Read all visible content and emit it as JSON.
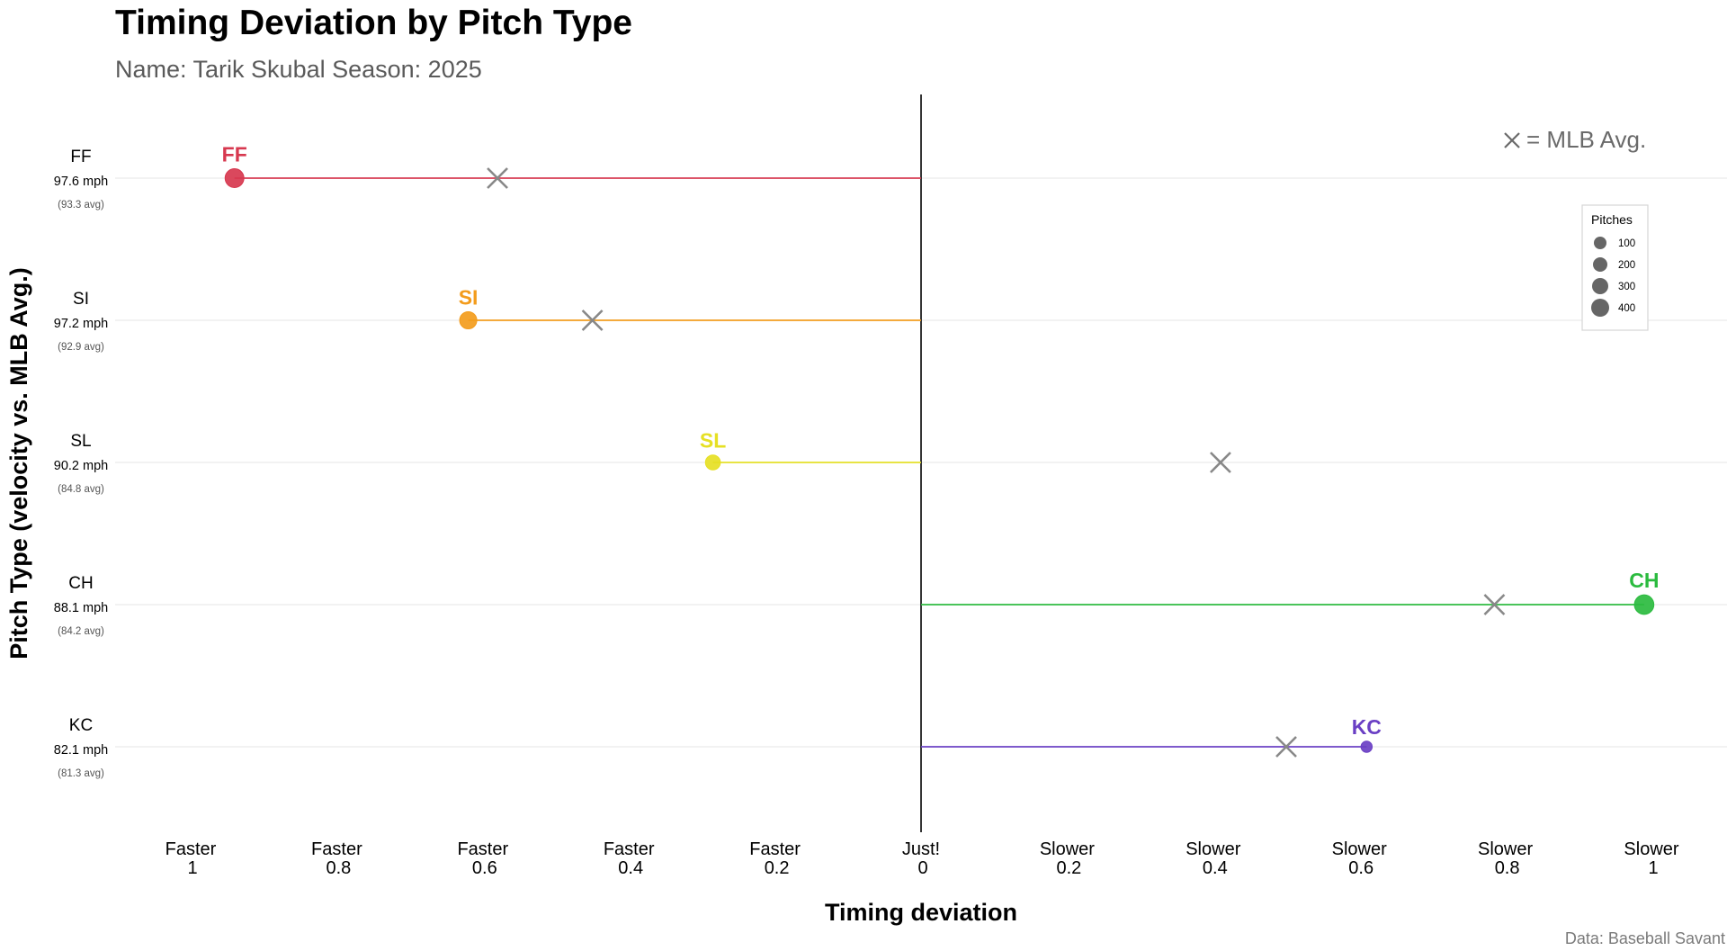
{
  "chart_data": {
    "type": "scatter",
    "title": "Timing Deviation by Pitch Type",
    "subtitle": "Name: Tarik Skubal  Season: 2025",
    "xlabel": "Timing deviation",
    "ylabel": "Pitch Type (velocity vs. MLB Avg.)",
    "caption": "Data: Baseball Savant",
    "avg_note": "= MLB Avg.",
    "xlim": [
      -1.05,
      1.05
    ],
    "x_ticks": [
      {
        "value": -1.0,
        "dir": "Faster",
        "num": "1"
      },
      {
        "value": -0.8,
        "dir": "Faster",
        "num": "0.8"
      },
      {
        "value": -0.6,
        "dir": "Faster",
        "num": "0.6"
      },
      {
        "value": -0.4,
        "dir": "Faster",
        "num": "0.4"
      },
      {
        "value": -0.2,
        "dir": "Faster",
        "num": "0.2"
      },
      {
        "value": 0.0,
        "dir": "Just!",
        "num": "0"
      },
      {
        "value": 0.2,
        "dir": "Slower",
        "num": "0.2"
      },
      {
        "value": 0.4,
        "dir": "Slower",
        "num": "0.4"
      },
      {
        "value": 0.6,
        "dir": "Slower",
        "num": "0.6"
      },
      {
        "value": 0.8,
        "dir": "Slower",
        "num": "0.8"
      },
      {
        "value": 1.0,
        "dir": "Slower",
        "num": "1"
      }
    ],
    "grid": true,
    "reference_line_x": 0,
    "legend": {
      "title": "Pitches",
      "position": "right",
      "entries": [
        {
          "label": "100",
          "value": 100
        },
        {
          "label": "200",
          "value": 200
        },
        {
          "label": "300",
          "value": 300
        },
        {
          "label": "400",
          "value": 400
        }
      ]
    },
    "pitches": [
      {
        "name": "FF",
        "velocity": "97.6 mph",
        "avg_velocity": "(93.3 avg)",
        "deviation": -0.94,
        "mlb_avg": -0.58,
        "pitches": 340,
        "color": "#d7384f"
      },
      {
        "name": "SI",
        "velocity": "97.2 mph",
        "avg_velocity": "(92.9 avg)",
        "deviation": -0.62,
        "mlb_avg": -0.45,
        "pitches": 250,
        "color": "#f39c1c"
      },
      {
        "name": "SL",
        "velocity": "90.2 mph",
        "avg_velocity": "(84.8 avg)",
        "deviation": -0.285,
        "mlb_avg": 0.41,
        "pitches": 150,
        "color": "#e6e024"
      },
      {
        "name": "CH",
        "velocity": "88.1 mph",
        "avg_velocity": "(84.2 avg)",
        "deviation": 0.99,
        "mlb_avg": 0.785,
        "pitches": 380,
        "color": "#2bbb3f"
      },
      {
        "name": "KC",
        "velocity": "82.1 mph",
        "avg_velocity": "(81.3 avg)",
        "deviation": 0.61,
        "mlb_avg": 0.5,
        "pitches": 40,
        "color": "#6a3fc4"
      }
    ]
  }
}
